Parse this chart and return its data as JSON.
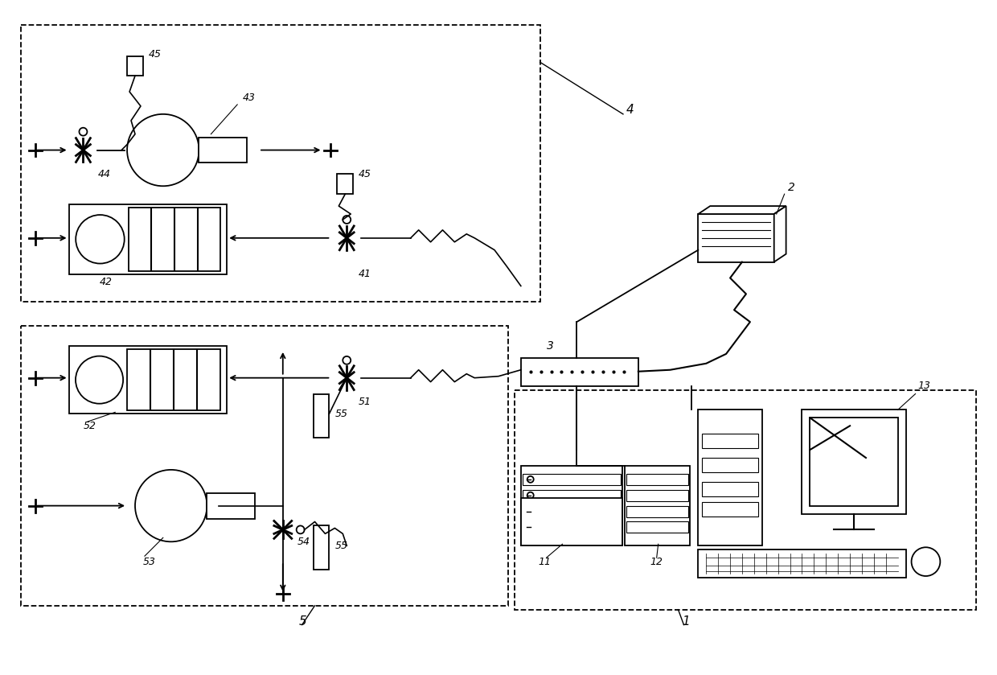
{
  "bg_color": "#ffffff",
  "lc": "#000000",
  "figsize": [
    12.4,
    8.39
  ],
  "dpi": 100
}
